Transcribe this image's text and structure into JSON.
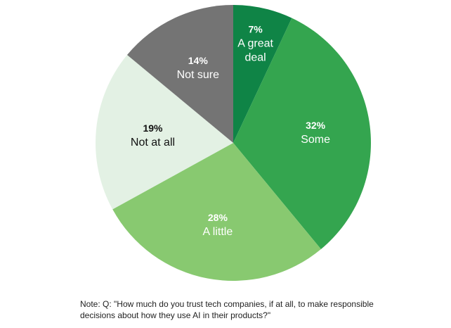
{
  "chart_data": {
    "type": "pie",
    "start_angle_deg": 0,
    "direction": "clockwise",
    "slices": [
      {
        "label": [
          "A great",
          "deal"
        ],
        "value": 7,
        "display": "7%",
        "color": "#0f8446",
        "text_color": "#ffffff"
      },
      {
        "label": [
          "Some"
        ],
        "value": 32,
        "display": "32%",
        "color": "#34a54f",
        "text_color": "#ffffff"
      },
      {
        "label": [
          "A little"
        ],
        "value": 28,
        "display": "28%",
        "color": "#88c970",
        "text_color": "#ffffff"
      },
      {
        "label": [
          "Not at all"
        ],
        "value": 19,
        "display": "19%",
        "color": "#e3f1e4",
        "text_color": "#111111"
      },
      {
        "label": [
          "Not sure"
        ],
        "value": 14,
        "display": "14%",
        "color": "#747474",
        "text_color": "#ffffff"
      }
    ]
  },
  "note": {
    "line1": "Note: Q: \"How much do you trust tech companies, if at all, to make responsible",
    "line2": "decisions about how they use AI in their products?\""
  }
}
